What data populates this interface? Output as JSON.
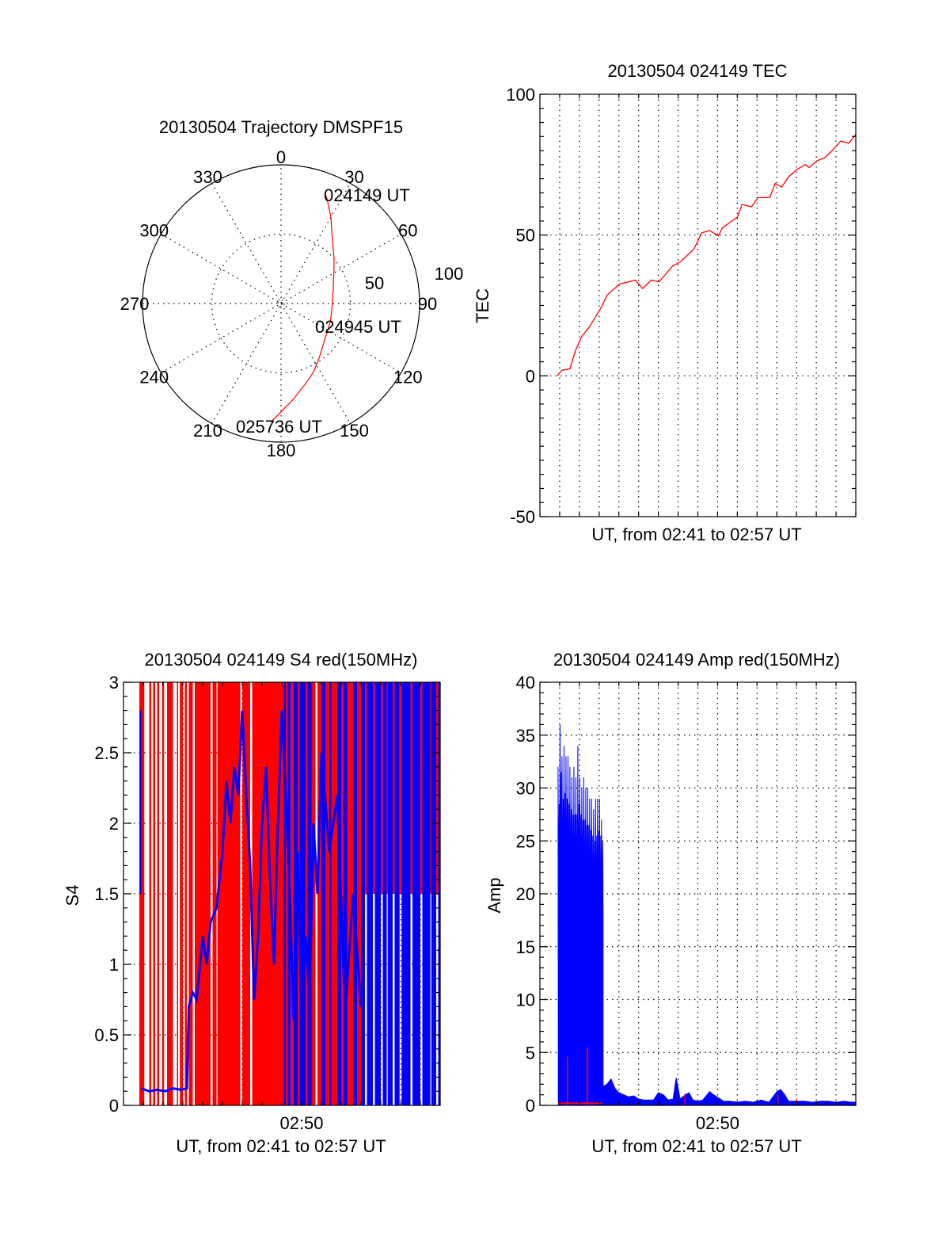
{
  "colors": {
    "red": "#ff0000",
    "blue": "#0000ff"
  },
  "chart_data": [
    {
      "type": "polar",
      "title": "20130504 Trajectory DMSPF15",
      "angle_labels": [
        "0",
        "30",
        "60",
        "90",
        "120",
        "150",
        "180",
        "210",
        "240",
        "270",
        "300",
        "330"
      ],
      "radial_labels": [
        "50",
        "100"
      ],
      "rlim": [
        0,
        100
      ],
      "trajectory": {
        "color": "red",
        "azimuth_deg": [
          23,
          30,
          38,
          50,
          60,
          75,
          90,
          110,
          130,
          145,
          155,
          165,
          173,
          185
        ],
        "radius": [
          84,
          72,
          60,
          50,
          44,
          39,
          37,
          38,
          41,
          48,
          55,
          62,
          70,
          86
        ]
      },
      "annotations": [
        "024149 UT",
        "024945 UT",
        "025736 UT"
      ]
    },
    {
      "type": "line",
      "title": "20130504 024149 TEC",
      "xlabel": "UT, from 02:41 to 02:57 UT",
      "ylabel": "TEC",
      "xlim_minutes": [
        0,
        16
      ],
      "ylim": [
        -50,
        100
      ],
      "yticks": [
        "-50",
        "0",
        "50",
        "100"
      ],
      "grid": true,
      "series": [
        {
          "name": "TEC",
          "color": "red",
          "x": [
            0.88,
            1.12,
            1.52,
            1.8,
            2.12,
            2.52,
            3.12,
            3.4,
            4.04,
            4.84,
            5.2,
            5.64,
            6.04,
            6.72,
            7.12,
            7.8,
            8.2,
            8.6,
            9.04,
            9.24,
            10.0,
            10.24,
            10.72,
            11.04,
            11.64,
            11.92,
            12.24,
            12.6,
            13.0,
            13.44,
            13.64,
            14.04,
            14.44,
            14.84,
            15.24,
            15.64,
            16.0
          ],
          "y": [
            0,
            2,
            2.5,
            9,
            14,
            17.5,
            24.5,
            28.7,
            32.6,
            34,
            31,
            34,
            33.4,
            39,
            40.5,
            45,
            50.8,
            51.6,
            49.7,
            52.5,
            56.4,
            60.9,
            60,
            63.3,
            63.3,
            68.4,
            67,
            70.7,
            73.2,
            75,
            74,
            76.4,
            77.5,
            80.3,
            83.4,
            82.6,
            85.7
          ]
        }
      ]
    },
    {
      "type": "bar",
      "title": "20130504 024149 S4 red(150MHz)",
      "xlabel": "UT, from 02:41 to 02:57 UT",
      "ylabel": "S4",
      "xlim_minutes": [
        0,
        16
      ],
      "xticks": [
        {
          "minute": 9,
          "label": "02:50"
        }
      ],
      "ylim": [
        0,
        3
      ],
      "yticks": [
        "0",
        "0.5",
        "1",
        "1.5",
        "2",
        "2.5",
        "3"
      ],
      "red_spans": [
        [
          0.8,
          1.05,
          0,
          3
        ],
        [
          1.3,
          1.4,
          0,
          3
        ],
        [
          1.5,
          1.6,
          0,
          3
        ],
        [
          1.7,
          1.8,
          0,
          3
        ],
        [
          1.95,
          2.05,
          0,
          3
        ],
        [
          2.2,
          2.5,
          0,
          3
        ],
        [
          2.7,
          2.75,
          0,
          3
        ],
        [
          2.85,
          3.0,
          0,
          3
        ],
        [
          3.1,
          3.2,
          0,
          3
        ],
        [
          3.3,
          3.5,
          0,
          3
        ],
        [
          3.6,
          4.4,
          0,
          3
        ],
        [
          4.5,
          4.7,
          0,
          3
        ],
        [
          4.75,
          5.9,
          0,
          3
        ],
        [
          6.0,
          6.4,
          0,
          3
        ],
        [
          6.5,
          7.0,
          0,
          3
        ],
        [
          7.0,
          8.1,
          0,
          3
        ],
        [
          8.2,
          8.3,
          0,
          3
        ],
        [
          8.45,
          8.6,
          0,
          3
        ],
        [
          8.8,
          8.9,
          0,
          3
        ],
        [
          9.2,
          9.3,
          0,
          3
        ],
        [
          9.5,
          9.7,
          0,
          3
        ],
        [
          9.8,
          10.0,
          0,
          3
        ],
        [
          10.2,
          10.4,
          0,
          3
        ],
        [
          10.5,
          10.8,
          0,
          3
        ],
        [
          11.0,
          11.1,
          0,
          3
        ],
        [
          11.3,
          11.6,
          0,
          3
        ],
        [
          11.8,
          12.0,
          0,
          3
        ],
        [
          12.2,
          12.3,
          1.5,
          3
        ],
        [
          12.6,
          12.7,
          1.5,
          3
        ],
        [
          13.0,
          13.1,
          1.5,
          3
        ],
        [
          13.3,
          13.35,
          1.5,
          3
        ],
        [
          13.6,
          13.7,
          1.5,
          3
        ],
        [
          13.95,
          14.05,
          1.5,
          3
        ],
        [
          14.5,
          14.6,
          1.5,
          3
        ],
        [
          15.0,
          15.1,
          1.5,
          3
        ],
        [
          15.5,
          15.55,
          1.5,
          3
        ],
        [
          15.8,
          15.9,
          1.5,
          3
        ]
      ],
      "blue_spans": [
        [
          0.82,
          0.9,
          1.5,
          2.8
        ],
        [
          8.1,
          8.2,
          0,
          3
        ],
        [
          8.3,
          8.45,
          0,
          3
        ],
        [
          8.6,
          8.8,
          0,
          3
        ],
        [
          8.9,
          9.2,
          0,
          3
        ],
        [
          9.3,
          9.5,
          0,
          3
        ],
        [
          10.0,
          10.2,
          0,
          3
        ],
        [
          10.4,
          10.5,
          0,
          3
        ],
        [
          10.8,
          11.0,
          0,
          3
        ],
        [
          11.1,
          11.3,
          0,
          3
        ],
        [
          11.6,
          11.8,
          0,
          3
        ],
        [
          12.0,
          12.2,
          0,
          3
        ],
        [
          12.3,
          12.6,
          0,
          3
        ],
        [
          12.7,
          13.0,
          0,
          3
        ],
        [
          13.1,
          13.3,
          0,
          3
        ],
        [
          13.35,
          13.6,
          0,
          3
        ],
        [
          13.7,
          13.95,
          0,
          3
        ],
        [
          14.05,
          14.5,
          0,
          3
        ],
        [
          14.6,
          15.0,
          0,
          3
        ],
        [
          15.1,
          15.5,
          0,
          3
        ],
        [
          15.55,
          15.8,
          0,
          3
        ],
        [
          15.9,
          16.0,
          0,
          3
        ]
      ],
      "blue_trace": {
        "x": [
          0.9,
          1.3,
          1.7,
          2.1,
          2.5,
          2.9,
          3.2,
          3.3,
          3.5,
          3.7,
          4.0,
          4.2,
          4.4,
          4.7,
          5.0,
          5.2,
          5.4,
          5.6,
          5.8,
          6.0,
          6.2,
          6.4,
          6.6,
          6.8,
          7.0,
          7.2,
          7.4,
          7.6,
          7.8,
          8.0,
          8.2,
          8.4,
          8.6,
          8.8,
          9.0,
          9.2,
          9.4,
          9.6,
          9.8,
          10.0,
          10.4,
          10.8,
          11.2,
          11.6,
          12.0
        ],
        "y": [
          0.12,
          0.1,
          0.11,
          0.1,
          0.12,
          0.11,
          0.12,
          0.7,
          0.8,
          0.75,
          1.2,
          1.0,
          1.3,
          1.4,
          1.8,
          2.3,
          2.0,
          2.4,
          2.2,
          2.8,
          2.2,
          1.7,
          0.75,
          1.2,
          2.0,
          2.4,
          1.6,
          1.0,
          2.0,
          2.8,
          2.2,
          1.5,
          0.6,
          1.8,
          0.5,
          1.2,
          0.75,
          2.0,
          1.5,
          2.5,
          1.8,
          2.2,
          0.65,
          1.5,
          0.7
        ]
      }
    },
    {
      "type": "line",
      "title": "20130504 024149 Amp red(150MHz)",
      "xlabel": "UT, from 02:41 to 02:57 UT",
      "ylabel": "Amp",
      "xlim_minutes": [
        0,
        16
      ],
      "xticks": [
        {
          "minute": 9,
          "label": "02:50"
        }
      ],
      "ylim": [
        0,
        40
      ],
      "yticks": [
        "0",
        "5",
        "10",
        "15",
        "20",
        "25",
        "30",
        "35",
        "40"
      ],
      "grid": true,
      "series": [
        {
          "name": "blue-high",
          "color": "blue",
          "x": [
            0.95,
            1.05,
            1.15,
            1.25,
            1.35,
            1.45,
            1.55,
            1.65,
            1.75,
            1.85,
            1.95,
            2.05,
            2.15,
            2.25,
            2.35,
            2.45,
            2.55,
            2.65,
            2.75,
            2.85,
            2.95,
            3.05,
            3.15
          ],
          "upper": [
            32,
            36,
            33,
            34,
            33,
            33,
            32,
            31,
            32,
            31,
            34,
            31,
            30,
            31,
            30,
            30,
            29,
            29,
            28,
            29,
            29,
            29,
            27
          ],
          "lower": [
            19,
            21,
            19,
            19,
            19,
            18,
            18,
            18,
            17,
            18,
            17,
            18,
            18,
            17,
            17,
            17,
            17,
            16,
            16,
            16,
            17,
            16,
            17
          ]
        },
        {
          "name": "blue-low",
          "color": "blue",
          "x": [
            3.2,
            3.4,
            3.6,
            3.8,
            4.0,
            4.25,
            4.5,
            4.75,
            5.0,
            5.25,
            5.5,
            5.75,
            6.0,
            6.25,
            6.5,
            6.75,
            6.9,
            7.1,
            7.3,
            7.55,
            7.75,
            8.0,
            8.25,
            8.6,
            8.8,
            9.05,
            9.3,
            9.6,
            10.0,
            10.4,
            10.8,
            11.2,
            11.6,
            12.0,
            12.2,
            12.4,
            12.6,
            13.0,
            13.4,
            13.8,
            14.2,
            14.6,
            15.0,
            15.4,
            15.8,
            16.0
          ],
          "y": [
            1.8,
            2.0,
            2.5,
            1.6,
            1.2,
            1.0,
            0.8,
            0.9,
            0.6,
            0.5,
            0.5,
            0.5,
            1.2,
            1.0,
            0.5,
            0.6,
            2.6,
            0.6,
            0.9,
            1.2,
            0.5,
            0.4,
            0.5,
            1.3,
            1.0,
            0.7,
            0.4,
            0.4,
            0.3,
            0.4,
            0.3,
            0.5,
            0.3,
            1.3,
            1.5,
            1.0,
            0.4,
            0.4,
            0.4,
            0.3,
            0.4,
            0.4,
            0.3,
            0.4,
            0.3,
            0.3
          ]
        },
        {
          "name": "red",
          "color": "red",
          "baseline": {
            "x": [
              0.92,
              3.16
            ],
            "y": 0.2
          },
          "spikes": [
            [
              1.4,
              4.6
            ],
            [
              2.4,
              5.5
            ],
            [
              7.35,
              1.1
            ],
            [
              12.05,
              1.0
            ],
            [
              13.0,
              0.6
            ]
          ]
        }
      ]
    }
  ]
}
